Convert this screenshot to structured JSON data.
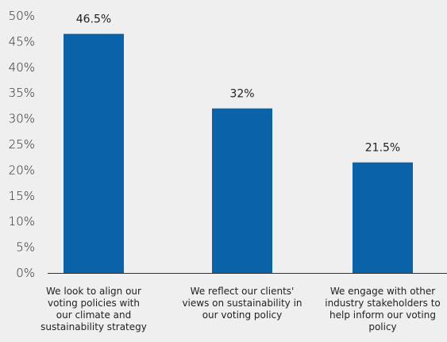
{
  "chart_data": {
    "type": "bar",
    "categories": [
      [
        "We look to align our",
        "voting policies with",
        "our climate and",
        "sustainability strategy"
      ],
      [
        "We reflect our clients'",
        "views on sustainability in",
        "our voting policy"
      ],
      [
        "We engage with other",
        "industry stakeholders to",
        "help inform our voting",
        "policy"
      ]
    ],
    "values": [
      46.5,
      32,
      21.5
    ],
    "data_labels": [
      "46.5%",
      "32%",
      "21.5%"
    ],
    "y_ticks": [
      "0%",
      "5%",
      "10%",
      "15%",
      "20%",
      "25%",
      "30%",
      "35%",
      "40%",
      "45%",
      "50%"
    ],
    "ylim": [
      0,
      50
    ],
    "grid": false,
    "legend": "none",
    "bar_color": "#0a63a8",
    "axis_color": "#333333"
  }
}
